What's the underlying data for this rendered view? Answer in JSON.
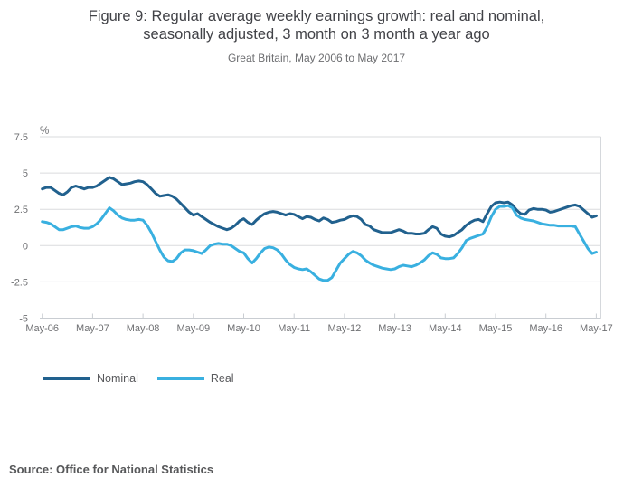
{
  "figure": {
    "title_line1": "Figure 9: Regular average weekly earnings growth: real and nominal,",
    "title_line2": "seasonally adjusted, 3 month on 3 month a year ago",
    "subtitle": "Great Britain, May 2006 to May 2017",
    "source": "Source: Office for National Statistics"
  },
  "legend": [
    {
      "label": "Nominal",
      "color": "#21618e"
    },
    {
      "label": "Real",
      "color": "#39b0e0"
    }
  ],
  "chart_data": {
    "type": "line",
    "title": "Figure 9: Regular average weekly earnings growth: real and nominal, seasonally adjusted, 3 month on 3 month a year ago",
    "subtitle": "Great Britain, May 2006 to May 2017",
    "y_unit_label": "%",
    "ylim": [
      -5,
      7.5
    ],
    "y_ticks": [
      "7.5",
      "5",
      "2.5",
      "0",
      "-2.5",
      "-5"
    ],
    "x_tick_labels": [
      "May-06",
      "May-07",
      "May-08",
      "May-09",
      "May-10",
      "May-11",
      "May-12",
      "May-13",
      "May-14",
      "May-15",
      "May-16",
      "May-17"
    ],
    "x_start": "May-2006",
    "x_end": "May-2017",
    "interval": "monthly",
    "grid": "horizontal",
    "legend_position": "bottom-left",
    "series": [
      {
        "name": "Nominal",
        "color": "#21618e",
        "values": [
          3.9,
          4.0,
          4.0,
          3.8,
          3.6,
          3.5,
          3.7,
          4.0,
          4.1,
          4.0,
          3.9,
          4.0,
          4.0,
          4.1,
          4.3,
          4.5,
          4.7,
          4.6,
          4.4,
          4.2,
          4.25,
          4.3,
          4.4,
          4.45,
          4.4,
          4.2,
          3.9,
          3.6,
          3.4,
          3.45,
          3.5,
          3.4,
          3.2,
          2.9,
          2.6,
          2.3,
          2.1,
          2.2,
          2.0,
          1.8,
          1.6,
          1.45,
          1.3,
          1.2,
          1.1,
          1.2,
          1.4,
          1.7,
          1.85,
          1.6,
          1.45,
          1.75,
          2.0,
          2.2,
          2.3,
          2.35,
          2.3,
          2.2,
          2.1,
          2.2,
          2.15,
          2.0,
          1.85,
          2.0,
          1.95,
          1.8,
          1.7,
          1.9,
          1.8,
          1.6,
          1.65,
          1.75,
          1.8,
          1.95,
          2.05,
          2.0,
          1.8,
          1.45,
          1.35,
          1.1,
          1.0,
          0.9,
          0.9,
          0.9,
          1.0,
          1.1,
          1.0,
          0.85,
          0.85,
          0.8,
          0.8,
          0.85,
          1.1,
          1.3,
          1.2,
          0.8,
          0.65,
          0.6,
          0.7,
          0.9,
          1.1,
          1.4,
          1.6,
          1.75,
          1.8,
          1.65,
          2.2,
          2.7,
          2.95,
          3.0,
          2.95,
          3.0,
          2.8,
          2.45,
          2.2,
          2.15,
          2.45,
          2.55,
          2.5,
          2.5,
          2.45,
          2.3,
          2.35,
          2.45,
          2.55,
          2.65,
          2.75,
          2.8,
          2.7,
          2.45,
          2.2,
          1.95,
          2.05
        ]
      },
      {
        "name": "Real",
        "color": "#39b0e0",
        "values": [
          1.65,
          1.6,
          1.5,
          1.3,
          1.1,
          1.1,
          1.2,
          1.3,
          1.35,
          1.25,
          1.2,
          1.2,
          1.3,
          1.5,
          1.8,
          2.2,
          2.6,
          2.4,
          2.1,
          1.9,
          1.8,
          1.75,
          1.75,
          1.8,
          1.75,
          1.4,
          0.9,
          0.3,
          -0.3,
          -0.8,
          -1.05,
          -1.1,
          -0.9,
          -0.5,
          -0.3,
          -0.3,
          -0.35,
          -0.45,
          -0.55,
          -0.3,
          0.0,
          0.1,
          0.15,
          0.1,
          0.1,
          0.0,
          -0.2,
          -0.4,
          -0.5,
          -0.9,
          -1.2,
          -0.9,
          -0.5,
          -0.2,
          -0.1,
          -0.15,
          -0.3,
          -0.6,
          -1.0,
          -1.3,
          -1.5,
          -1.6,
          -1.65,
          -1.6,
          -1.8,
          -2.05,
          -2.3,
          -2.4,
          -2.4,
          -2.2,
          -1.7,
          -1.2,
          -0.9,
          -0.6,
          -0.4,
          -0.5,
          -0.7,
          -1.0,
          -1.2,
          -1.35,
          -1.45,
          -1.55,
          -1.6,
          -1.65,
          -1.6,
          -1.45,
          -1.35,
          -1.4,
          -1.45,
          -1.35,
          -1.2,
          -1.0,
          -0.7,
          -0.5,
          -0.6,
          -0.85,
          -0.9,
          -0.9,
          -0.85,
          -0.55,
          -0.15,
          0.35,
          0.5,
          0.6,
          0.7,
          0.8,
          1.3,
          2.0,
          2.5,
          2.7,
          2.7,
          2.75,
          2.6,
          2.1,
          1.9,
          1.8,
          1.75,
          1.7,
          1.6,
          1.5,
          1.45,
          1.4,
          1.4,
          1.35,
          1.35,
          1.35,
          1.35,
          1.3,
          0.8,
          0.3,
          -0.2,
          -0.55,
          -0.45
        ]
      }
    ]
  }
}
